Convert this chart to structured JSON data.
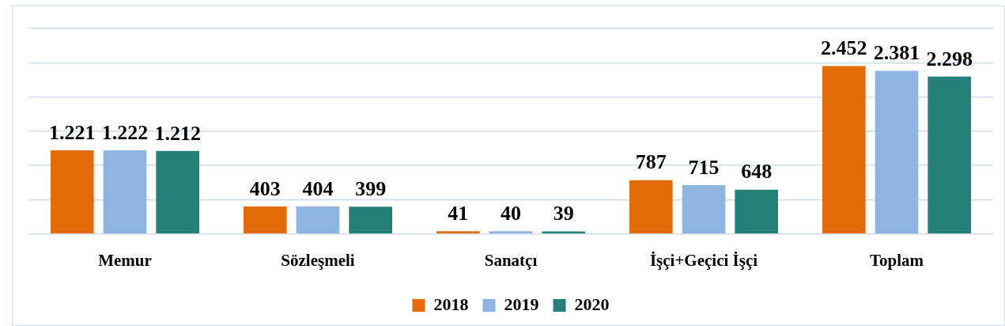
{
  "chart_data": {
    "type": "bar",
    "categories": [
      "Memur",
      "Sözleşmeli",
      "Sanatçı",
      "İşçi+Geçici İşçi",
      "Toplam"
    ],
    "series": [
      {
        "name": "2018",
        "color": "#e36c0a",
        "values": [
          1221,
          403,
          41,
          787,
          2452
        ],
        "value_labels": [
          "1.221",
          "403",
          "41",
          "787",
          "2.452"
        ]
      },
      {
        "name": "2019",
        "color": "#8eb4e3",
        "values": [
          1222,
          404,
          40,
          715,
          2381
        ],
        "value_labels": [
          "1.222",
          "404",
          "40",
          "715",
          "2.381"
        ]
      },
      {
        "name": "2020",
        "color": "#267f78",
        "values": [
          1212,
          399,
          39,
          648,
          2298
        ],
        "value_labels": [
          "1.212",
          "399",
          "39",
          "648",
          "2.298"
        ]
      }
    ],
    "ylim": [
      0,
      3000
    ],
    "yticks": [
      {
        "value": 0,
        "label": null
      },
      {
        "value": 500,
        "label": null
      },
      {
        "value": 1000,
        "label": null
      },
      {
        "value": 1500,
        "label": null
      },
      {
        "value": 2000,
        "label": null
      },
      {
        "value": 2500,
        "label": null
      },
      {
        "value": 3000,
        "label": null
      }
    ],
    "grid": "y",
    "tick_labels": "x",
    "legend": "bottom"
  }
}
